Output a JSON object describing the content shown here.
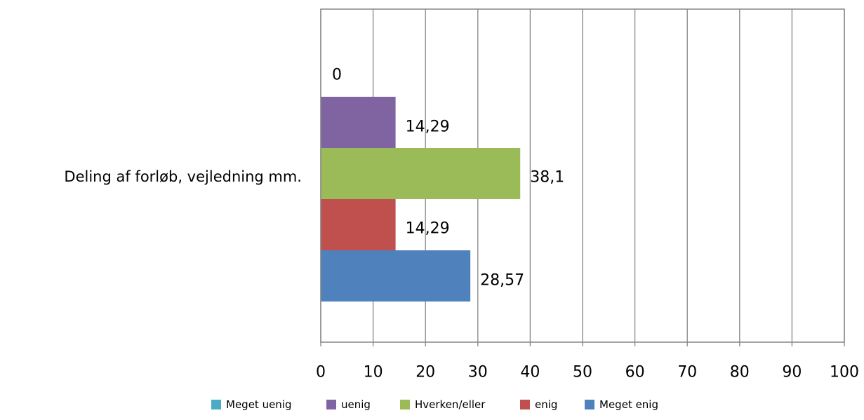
{
  "chart_data": {
    "type": "bar",
    "orientation": "horizontal",
    "categories": [
      "Deling af forløb, vejledning mm."
    ],
    "series": [
      {
        "name": "Meget uenig",
        "values": [
          0
        ],
        "color": "#4bacc6"
      },
      {
        "name": "uenig",
        "values": [
          14.29
        ],
        "color": "#8064a2"
      },
      {
        "name": "Hverken/eller",
        "values": [
          38.1
        ],
        "color": "#9bbb59"
      },
      {
        "name": "enig",
        "values": [
          14.29
        ],
        "color": "#c0504d"
      },
      {
        "name": "Meget enig",
        "values": [
          28.57
        ],
        "color": "#4f81bd"
      }
    ],
    "data_labels": [
      "0",
      "14,29",
      "38,1",
      "14,29",
      "28,57"
    ],
    "xlim": [
      0,
      100
    ],
    "x_ticks": [
      0,
      10,
      20,
      30,
      40,
      50,
      60,
      70,
      80,
      90,
      100
    ],
    "x_tick_labels": [
      "0",
      "10",
      "20",
      "30",
      "40",
      "50",
      "60",
      "70",
      "80",
      "90",
      "100"
    ],
    "grid": true,
    "legend_position": "bottom",
    "title": "",
    "xlabel": "",
    "ylabel": ""
  }
}
